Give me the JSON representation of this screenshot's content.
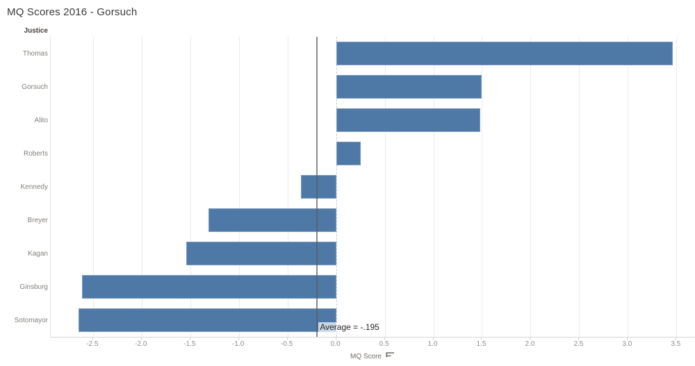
{
  "chart_data": {
    "type": "bar",
    "orientation": "horizontal",
    "title": "MQ Scores 2016 - Gorsuch",
    "xlabel": "MQ Score",
    "ylabel": "Justice",
    "categories": [
      "Thomas",
      "Gorsuch",
      "Alito",
      "Roberts",
      "Kennedy",
      "Breyer",
      "Kagan",
      "Ginsburg",
      "Sotomayor"
    ],
    "values": [
      3.46,
      1.5,
      1.48,
      0.25,
      -0.36,
      -1.31,
      -1.54,
      -2.61,
      -2.65
    ],
    "xlim": [
      -2.935,
      3.698
    ],
    "xticks": [
      -2.5,
      -2.0,
      -1.5,
      -1.0,
      -0.5,
      0.0,
      0.5,
      1.0,
      1.5,
      2.0,
      2.5,
      3.0,
      3.5
    ],
    "xtick_labels": [
      "-2.5",
      "-2.0",
      "-1.5",
      "-1.0",
      "-0.5",
      "0.0",
      "0.5",
      "1.0",
      "1.5",
      "2.0",
      "2.5",
      "3.0",
      "3.5"
    ],
    "grid": true,
    "legend": "none",
    "sort": "descending by MQ Score",
    "reference_line": {
      "value": -0.195,
      "label": "Average = -.195"
    }
  },
  "colors": {
    "bar": "#4e79a7",
    "gridline": "#ebebeb",
    "zero_line": "#c9c9c9",
    "reference_line": "#565b61",
    "axis_line": "#d5d5d5",
    "tick_label": "#8c8c8c",
    "row_label": "#83807a",
    "title": "#3a3a3a"
  },
  "icons": {
    "sort": "sort-descending-icon"
  }
}
